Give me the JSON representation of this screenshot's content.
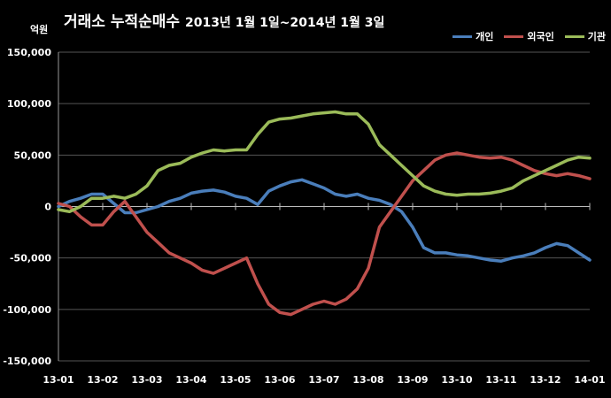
{
  "chart_data": {
    "type": "line",
    "title": "거래소  누적순매수",
    "subtitle": "2013년 1월 1일~2014년 1월 3일",
    "ylabel": "억원",
    "ylim": [
      -150000,
      150000
    ],
    "yticks": [
      "150,000",
      "100,000",
      "50,000",
      "0",
      "-50,000",
      "-100,000",
      "-150,000"
    ],
    "ytick_values": [
      150000,
      100000,
      50000,
      0,
      -50000,
      -100000,
      -150000
    ],
    "categories": [
      "13-01",
      "13-02",
      "13-03",
      "13-04",
      "13-05",
      "13-06",
      "13-07",
      "13-08",
      "13-09",
      "13-10",
      "13-11",
      "13-12",
      "14-01"
    ],
    "grid": true,
    "legend_position": "top-right",
    "x": [
      0,
      0.25,
      0.5,
      0.75,
      1,
      1.25,
      1.5,
      1.75,
      2,
      2.25,
      2.5,
      2.75,
      3,
      3.25,
      3.5,
      3.75,
      4,
      4.25,
      4.5,
      4.75,
      5,
      5.25,
      5.5,
      5.75,
      6,
      6.25,
      6.5,
      6.75,
      7,
      7.25,
      7.5,
      7.75,
      8,
      8.25,
      8.5,
      8.75,
      9,
      9.25,
      9.5,
      9.75,
      10,
      10.25,
      10.5,
      10.75,
      11,
      11.25,
      11.5,
      11.75,
      12
    ],
    "series": [
      {
        "name": "개인",
        "color": "#4a7ebb",
        "values": [
          0,
          5000,
          8000,
          12000,
          12000,
          3000,
          -6000,
          -6000,
          -3000,
          0,
          5000,
          8000,
          13000,
          15000,
          16000,
          14000,
          10000,
          8000,
          2000,
          15000,
          20000,
          24000,
          26000,
          22000,
          18000,
          12000,
          10000,
          12000,
          8000,
          6000,
          2000,
          -5000,
          -20000,
          -40000,
          -45000,
          -45000,
          -47000,
          -48000,
          -50000,
          -52000,
          -53000,
          -50000,
          -48000,
          -45000,
          -40000,
          -36000,
          -38000,
          -45000,
          -52000
        ]
      },
      {
        "name": "외국인",
        "color": "#c0504d",
        "values": [
          3000,
          0,
          -10000,
          -18000,
          -18000,
          -5000,
          5000,
          -10000,
          -25000,
          -35000,
          -45000,
          -50000,
          -55000,
          -62000,
          -65000,
          -60000,
          -55000,
          -50000,
          -75000,
          -95000,
          -103000,
          -105000,
          -100000,
          -95000,
          -92000,
          -95000,
          -90000,
          -80000,
          -60000,
          -20000,
          -5000,
          10000,
          25000,
          35000,
          45000,
          50000,
          52000,
          50000,
          48000,
          47000,
          48000,
          45000,
          40000,
          35000,
          32000,
          30000,
          32000,
          30000,
          27000
        ]
      },
      {
        "name": "기관",
        "color": "#9bbb59",
        "values": [
          -3000,
          -5000,
          0,
          8000,
          8000,
          10000,
          8000,
          12000,
          20000,
          35000,
          40000,
          42000,
          48000,
          52000,
          55000,
          54000,
          55000,
          55000,
          70000,
          82000,
          85000,
          86000,
          88000,
          90000,
          91000,
          92000,
          90000,
          90000,
          80000,
          60000,
          50000,
          40000,
          30000,
          20000,
          15000,
          12000,
          11000,
          12000,
          12000,
          13000,
          15000,
          18000,
          25000,
          30000,
          35000,
          40000,
          45000,
          48000,
          47000
        ]
      }
    ]
  }
}
